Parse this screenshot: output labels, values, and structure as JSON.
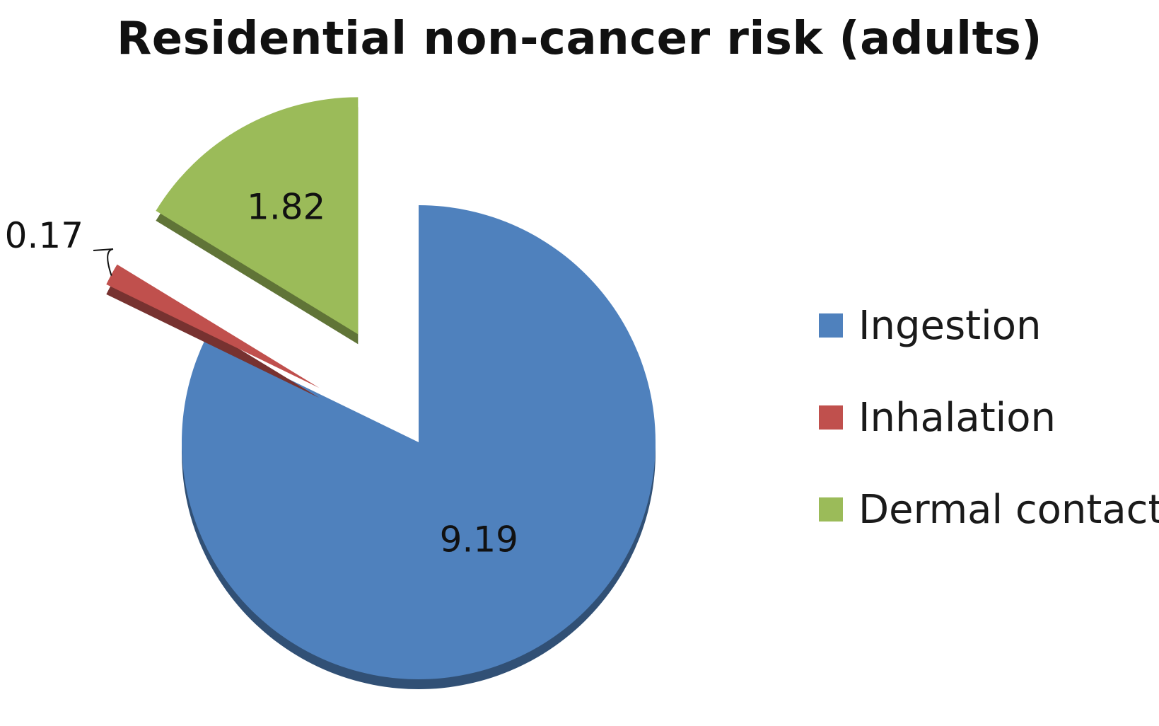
{
  "chart_data": {
    "type": "pie",
    "title": "Residential non-cancer risk (adults)",
    "categories": [
      "Ingestion",
      "Inhalation",
      "Dermal contact"
    ],
    "values": [
      9.19,
      0.17,
      1.82
    ],
    "data_labels": [
      "9.19",
      "0.17",
      "1.82"
    ],
    "colors": [
      "#4F81BD",
      "#C0504D",
      "#9BBB59"
    ],
    "exploded": true,
    "style": "3d",
    "legend_position": "right"
  }
}
